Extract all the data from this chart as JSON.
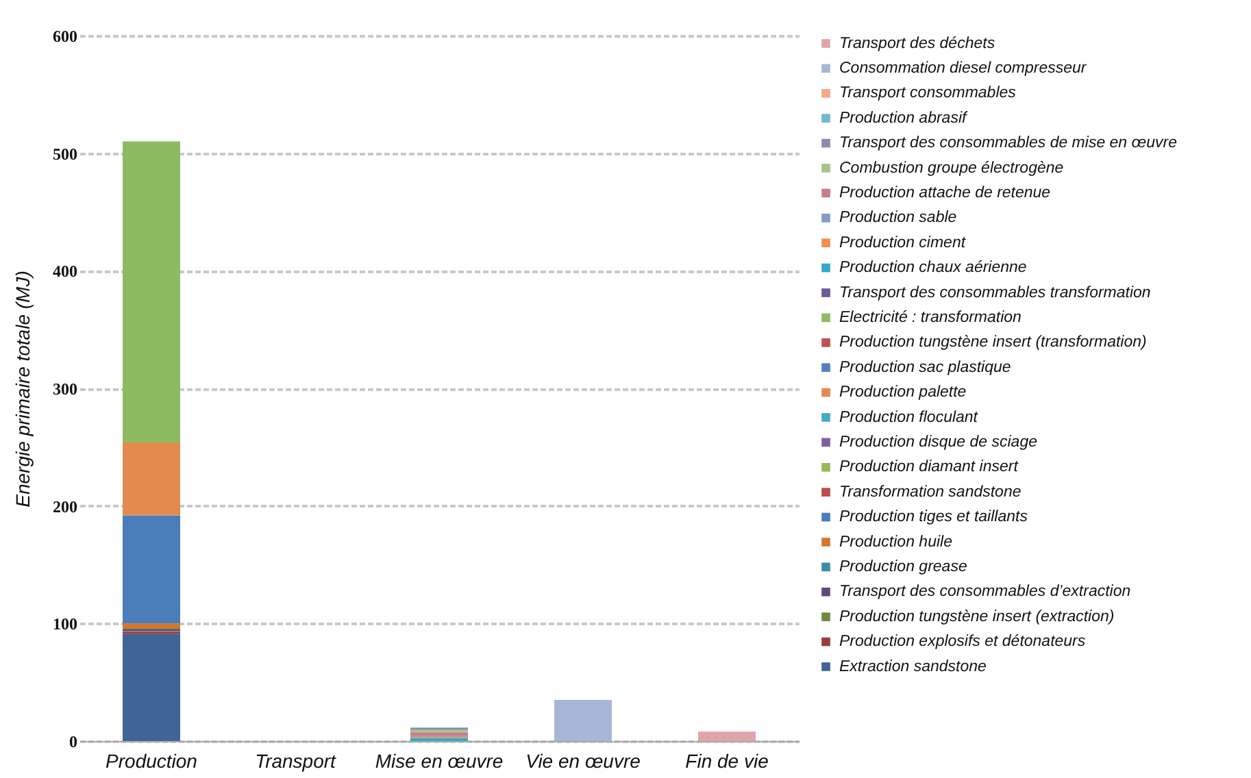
{
  "chart_data": {
    "type": "bar",
    "stacked": true,
    "categories": [
      "Production",
      "Transport",
      "Mise en œuvre",
      "Vie en œuvre",
      "Fin de vie"
    ],
    "ylabel": "Energie primaire totale (MJ)",
    "ylim": [
      0,
      600
    ],
    "yticks": [
      0,
      100,
      200,
      300,
      400,
      500,
      600
    ],
    "grid": "y",
    "legend": "right",
    "series": [
      {
        "name": "Extraction sandstone",
        "color": "#3f6496",
        "values": [
          91,
          0,
          0,
          0,
          0
        ]
      },
      {
        "name": "Production explosifs et détonateurs",
        "color": "#9b3c3a",
        "values": [
          2,
          0,
          0,
          0,
          0
        ]
      },
      {
        "name": "Production tungstène insert (extraction)",
        "color": "#71893f",
        "values": [
          0.5,
          0,
          0,
          0,
          0
        ]
      },
      {
        "name": "Transport des consommables d’extraction",
        "color": "#5f4a7b",
        "values": [
          1.5,
          0,
          0,
          0,
          0
        ]
      },
      {
        "name": "Production grease",
        "color": "#3b8ea5",
        "values": [
          0.5,
          0,
          0,
          0,
          0
        ]
      },
      {
        "name": "Production huile",
        "color": "#d4772a",
        "values": [
          4.5,
          0,
          0,
          0,
          0
        ]
      },
      {
        "name": "Production tiges et taillants",
        "color": "#4a7ebb",
        "values": [
          92,
          0,
          0,
          0,
          0
        ]
      },
      {
        "name": "Transformation sandstone",
        "color": "#be4b48",
        "values": [
          0,
          0,
          0,
          0,
          0
        ]
      },
      {
        "name": "Production diamant insert",
        "color": "#98b954",
        "values": [
          0,
          0,
          0,
          0,
          0
        ]
      },
      {
        "name": "Production disque de sciage",
        "color": "#7d60a0",
        "values": [
          0,
          0,
          0,
          0,
          0
        ]
      },
      {
        "name": "Production floculant",
        "color": "#46aac5",
        "values": [
          0,
          0,
          0,
          0,
          0
        ]
      },
      {
        "name": "Production palette",
        "color": "#e48a4e",
        "values": [
          62,
          0,
          0,
          0,
          0
        ]
      },
      {
        "name": "Production sac plastique",
        "color": "#4f81bd",
        "values": [
          0,
          0,
          0,
          0,
          0
        ]
      },
      {
        "name": "Production tungstène insert (transformation)",
        "color": "#c0504d",
        "values": [
          0,
          0,
          0,
          0,
          0
        ]
      },
      {
        "name": "Electricité : transformation",
        "color": "#8dbb62",
        "values": [
          256,
          0,
          0,
          0,
          0
        ]
      },
      {
        "name": "Transport des consommables transformation",
        "color": "#6a5a9a",
        "values": [
          0,
          0,
          0,
          0,
          0
        ]
      },
      {
        "name": "Production chaux aérienne",
        "color": "#32a9c8",
        "values": [
          0,
          0,
          2.5,
          0,
          0
        ]
      },
      {
        "name": "Production ciment",
        "color": "#f38f4f",
        "values": [
          0,
          0,
          1,
          0,
          0
        ]
      },
      {
        "name": "Production sable",
        "color": "#7f9bc8",
        "values": [
          0,
          0,
          1,
          0,
          0
        ]
      },
      {
        "name": "Production attache de retenue",
        "color": "#c87f84",
        "values": [
          0,
          0,
          3,
          0,
          0
        ]
      },
      {
        "name": "Combustion groupe électrogène",
        "color": "#a8c38b",
        "values": [
          0,
          0,
          2,
          0,
          0
        ]
      },
      {
        "name": "Transport des consommables de mise en œuvre",
        "color": "#8f8aa8",
        "values": [
          0,
          0,
          1.5,
          0,
          0
        ]
      },
      {
        "name": "Production abrasif",
        "color": "#6fb8d0",
        "values": [
          0,
          0,
          0.5,
          0,
          0
        ]
      },
      {
        "name": "Transport consommables",
        "color": "#f6a68a",
        "values": [
          0,
          0,
          0,
          0,
          0
        ]
      },
      {
        "name": "Consommation diesel compresseur",
        "color": "#a7b6d7",
        "values": [
          0,
          0,
          0,
          35,
          0
        ]
      },
      {
        "name": "Transport des déchets",
        "color": "#e0a5aa",
        "values": [
          0,
          0,
          0,
          0,
          8
        ]
      }
    ]
  }
}
